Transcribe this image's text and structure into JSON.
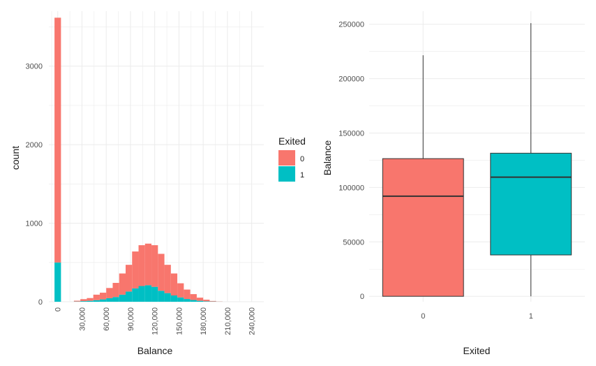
{
  "colors": {
    "exited_0": "#F8766D",
    "exited_1": "#00BFC4",
    "grid": "#ebebeb"
  },
  "chart_data": [
    {
      "type": "bar",
      "variant": "stacked-histogram",
      "xlabel": "Balance",
      "ylabel": "count",
      "xlim": [
        -11000,
        255000
      ],
      "ylim": [
        0,
        3700
      ],
      "bin_width": 8000,
      "x_ticks": [
        0,
        30000,
        60000,
        90000,
        120000,
        150000,
        180000,
        210000,
        240000
      ],
      "x_tick_labels": [
        "0",
        "30,000",
        "60,000",
        "90,000",
        "120,000",
        "150,000",
        "180,000",
        "210,000",
        "240,000"
      ],
      "y_ticks": [
        0,
        1000,
        2000,
        3000
      ],
      "y_tick_labels": [
        "0",
        "1000",
        "2000",
        "3000"
      ],
      "bins": [
        0,
        24000,
        32000,
        40000,
        48000,
        56000,
        64000,
        72000,
        80000,
        88000,
        96000,
        104000,
        112000,
        120000,
        128000,
        136000,
        144000,
        152000,
        160000,
        168000,
        176000,
        184000,
        192000,
        200000
      ],
      "series": [
        {
          "name": "1",
          "values": [
            500,
            3,
            8,
            12,
            20,
            30,
            45,
            60,
            90,
            130,
            170,
            200,
            210,
            190,
            140,
            110,
            80,
            55,
            35,
            22,
            12,
            6,
            3,
            1
          ]
        },
        {
          "name": "0",
          "values": [
            3117,
            10,
            25,
            35,
            70,
            85,
            130,
            180,
            270,
            340,
            470,
            520,
            530,
            530,
            470,
            360,
            280,
            180,
            120,
            75,
            40,
            20,
            7,
            2
          ]
        }
      ],
      "legend": {
        "title": "Exited",
        "entries": [
          "0",
          "1"
        ],
        "position": "right"
      },
      "grid": true
    },
    {
      "type": "box",
      "xlabel": "Exited",
      "ylabel": "Balance",
      "categories": [
        "0",
        "1"
      ],
      "ylim": [
        -5000,
        262000
      ],
      "y_ticks": [
        0,
        50000,
        100000,
        150000,
        200000,
        250000
      ],
      "y_tick_labels": [
        "0",
        "50000",
        "100000",
        "150000",
        "200000",
        "250000"
      ],
      "boxes": [
        {
          "category": "0",
          "min": 0,
          "q1": 0,
          "median": 92000,
          "q3": 126500,
          "max": 221500
        },
        {
          "category": "1",
          "min": 0,
          "q1": 38000,
          "median": 109500,
          "q3": 131500,
          "max": 251000
        }
      ],
      "grid": true
    }
  ]
}
